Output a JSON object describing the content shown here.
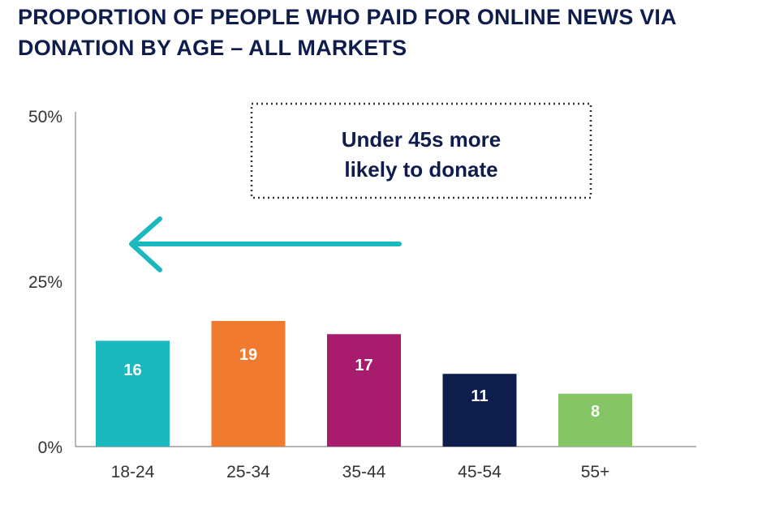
{
  "chart_data": {
    "type": "bar",
    "title_lines": [
      "PROPORTION OF PEOPLE WHO PAID FOR ONLINE NEWS VIA",
      "DONATION BY AGE – ALL MARKETS"
    ],
    "categories": [
      "18-24",
      "25-34",
      "35-44",
      "45-54",
      "55+"
    ],
    "values": [
      16,
      19,
      17,
      11,
      8
    ],
    "data_labels": [
      "16",
      "19",
      "17",
      "11",
      "8"
    ],
    "colors": [
      "#1cb8c0",
      "#f07a2e",
      "#a81c6d",
      "#0f1d4d",
      "#86c566"
    ],
    "ylim": [
      0,
      50
    ],
    "yticks": [
      0,
      25,
      50
    ],
    "ytick_labels": [
      "0%",
      "25%",
      "50%"
    ],
    "grid": false,
    "legend": "none",
    "annotation": {
      "lines": [
        "Under 45s more",
        "likely to donate"
      ],
      "arrow_color": "#1cb8c0",
      "arrow_direction": "left"
    }
  }
}
